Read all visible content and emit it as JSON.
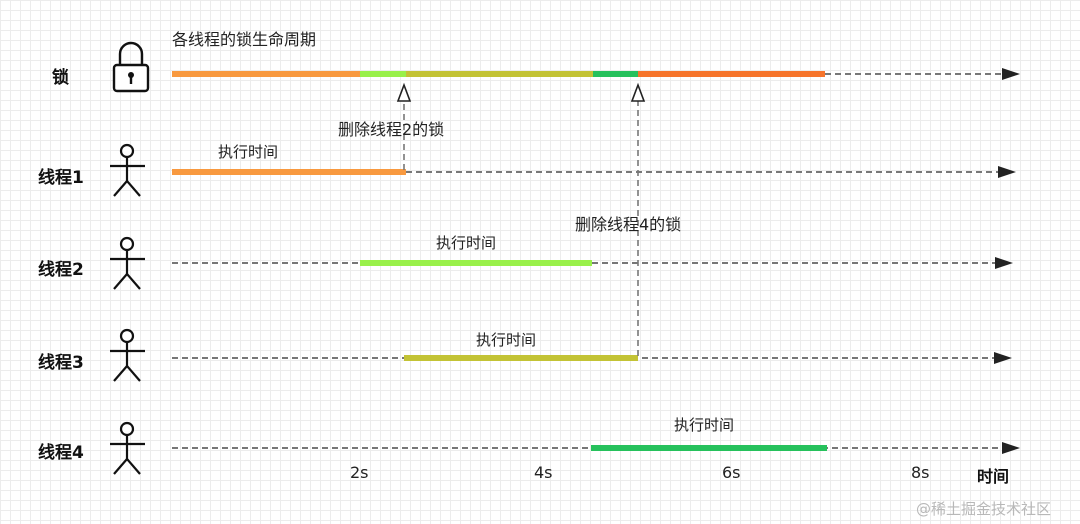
{
  "diagram": {
    "title": "各线程的锁生命周期",
    "lock_label": "锁",
    "threads": [
      {
        "label": "线程1",
        "caption": "执行时间",
        "color": "#f8993f"
      },
      {
        "label": "线程2",
        "caption": "执行时间",
        "color": "#99f04a"
      },
      {
        "label": "线程3",
        "caption": "执行时间",
        "color": "#c3c335"
      },
      {
        "label": "线程4",
        "caption": "执行时间",
        "color": "#26c15c"
      }
    ],
    "annotations": {
      "delete_lock_2": "删除线程2的锁",
      "delete_lock_4": "删除线程4的锁"
    },
    "axis": {
      "ticks": [
        "2s",
        "4s",
        "6s",
        "8s"
      ],
      "title": "时间"
    },
    "colors": {
      "lock_thread1": "#f8993f",
      "lock_thread2": "#99f04a",
      "lock_thread3": "#c3c335",
      "lock_thread4": "#26c15c",
      "lock_second_thread1": "#f6742b",
      "dashed": "#777777",
      "arrowhead": "#222222"
    },
    "icons": {
      "lock": "padlock-icon",
      "thread": "stick-figure-icon"
    }
  },
  "watermark": "@稀土掘金技术社区"
}
